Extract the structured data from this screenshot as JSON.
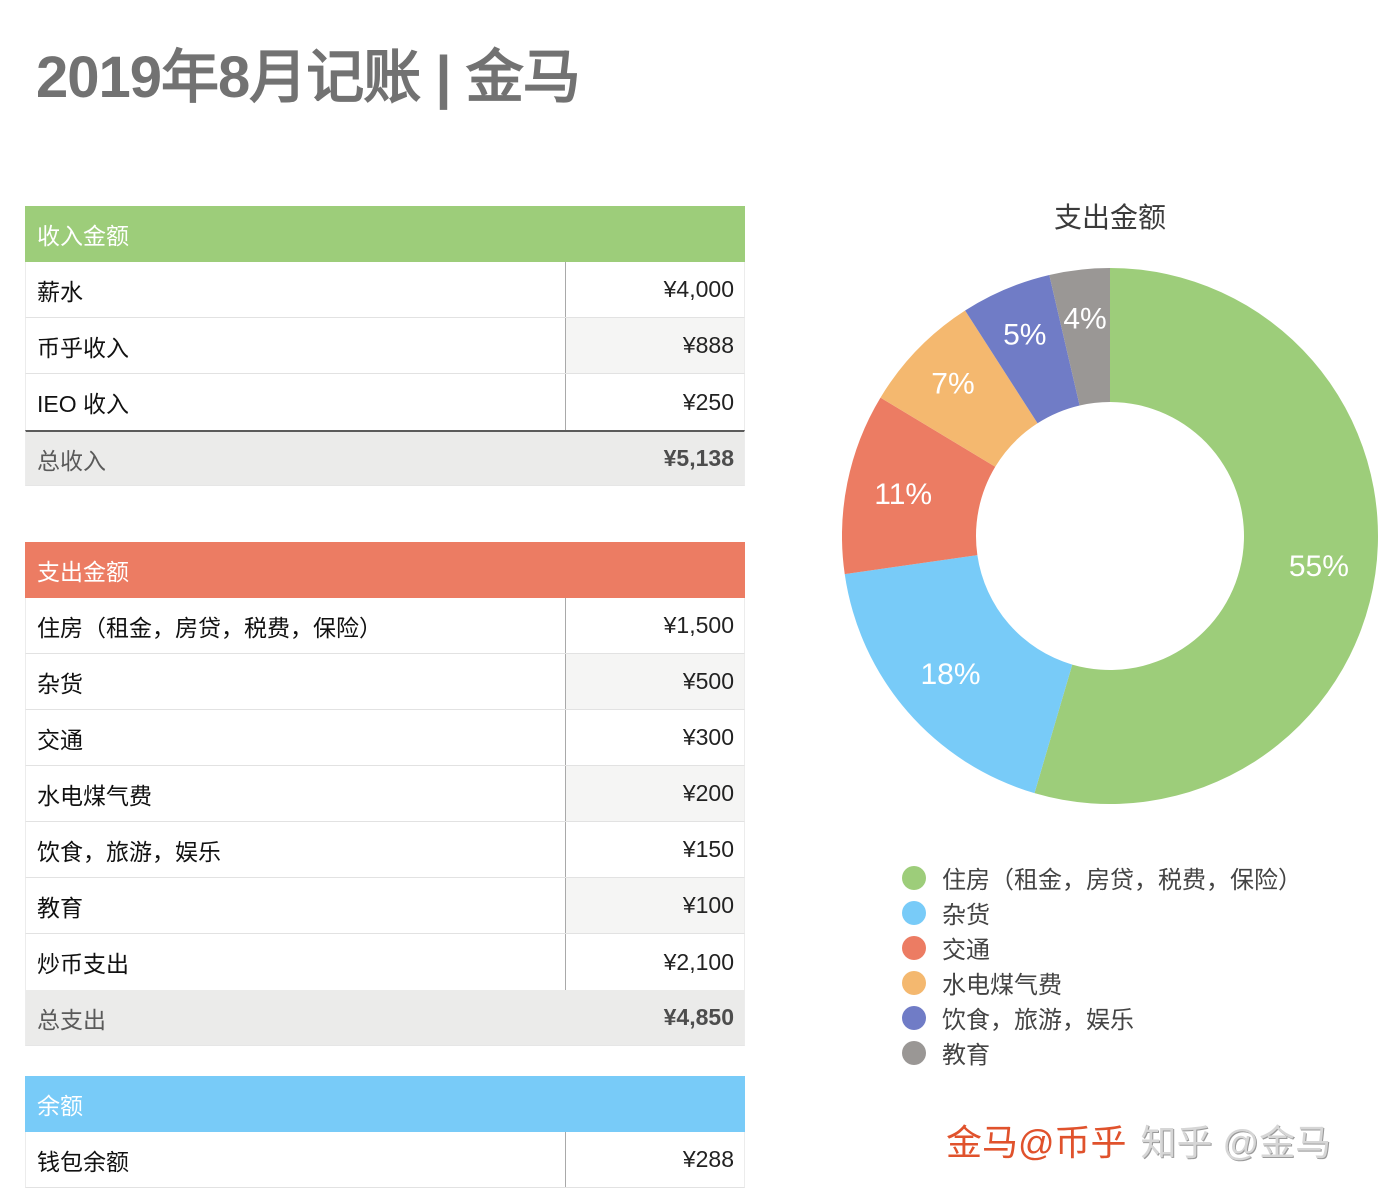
{
  "page": {
    "title": "2019年8月记账 | 金马"
  },
  "income": {
    "header": "收入金额",
    "header_color": "#9dcd7a",
    "rows": [
      {
        "label": "薪水",
        "value": "¥4,000"
      },
      {
        "label": "币乎收入",
        "value": "¥888"
      },
      {
        "label": "IEO 收入",
        "value": "¥250"
      }
    ],
    "total": {
      "label": "总收入",
      "value": "¥5,138"
    }
  },
  "expense": {
    "header": "支出金额",
    "header_color": "#ec7c63",
    "rows": [
      {
        "label": "住房（租金，房贷，税费，保险）",
        "value": "¥1,500"
      },
      {
        "label": "杂货",
        "value": "¥500"
      },
      {
        "label": "交通",
        "value": "¥300"
      },
      {
        "label": "水电煤气费",
        "value": "¥200"
      },
      {
        "label": "饮食，旅游，娱乐",
        "value": "¥150"
      },
      {
        "label": "教育",
        "value": "¥100"
      },
      {
        "label": "炒币支出",
        "value": "¥2,100"
      }
    ],
    "total": {
      "label": "总支出",
      "value": "¥4,850"
    }
  },
  "balance": {
    "header": "余额",
    "header_color": "#78cbf8",
    "rows": [
      {
        "label": "钱包余额",
        "value": "¥288"
      }
    ]
  },
  "chart": {
    "title": "支出金额",
    "legend": [
      {
        "label": "住房（租金，房贷，税费，保险）",
        "color": "#9dcd7a"
      },
      {
        "label": "杂货",
        "color": "#78cbf8"
      },
      {
        "label": "交通",
        "color": "#ec7c63"
      },
      {
        "label": "水电煤气费",
        "color": "#f4b86f"
      },
      {
        "label": "饮食，旅游，娱乐",
        "color": "#707cc6"
      },
      {
        "label": "教育",
        "color": "#9a9795"
      }
    ],
    "slice_labels": [
      "55%",
      "18%",
      "11%",
      "7%",
      "5%",
      "4%"
    ]
  },
  "watermark": {
    "primary": "金马@币乎",
    "secondary": "知乎 @金马"
  },
  "chart_data": {
    "type": "pie",
    "title": "支出金额",
    "categories": [
      "住房（租金，房贷，税费，保险）",
      "杂货",
      "交通",
      "水电煤气费",
      "饮食，旅游，娱乐",
      "教育"
    ],
    "values": [
      1500,
      500,
      300,
      200,
      150,
      100
    ],
    "percent_labels": [
      "55%",
      "18%",
      "11%",
      "7%",
      "5%",
      "4%"
    ],
    "colors": [
      "#9dcd7a",
      "#78cbf8",
      "#ec7c63",
      "#f4b86f",
      "#707cc6",
      "#9a9795"
    ],
    "donut": true,
    "legend_position": "bottom"
  }
}
